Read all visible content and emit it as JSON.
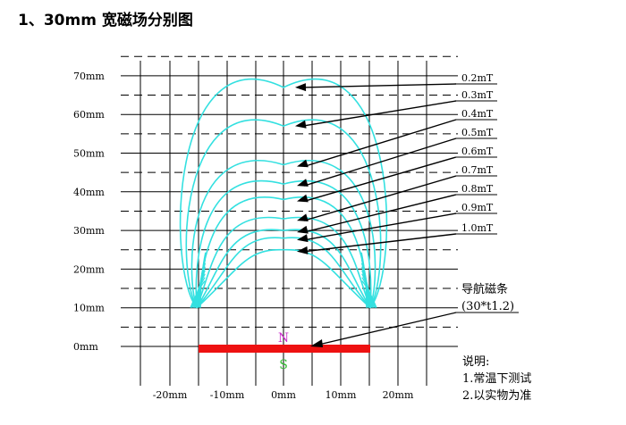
{
  "title": "1、30mm 宽磁场分别图",
  "y_axis_labels": [
    "70mm",
    "60mm",
    "50mm",
    "40mm",
    "30mm",
    "20mm",
    "10mm",
    "0mm"
  ],
  "x_axis_labels": [
    "-20mm",
    "-10mm",
    "0mm",
    "10mm",
    "20mm"
  ],
  "field_lines": [
    {
      "label": "0.2mT",
      "height_mm": 67
    },
    {
      "label": "0.3mT",
      "height_mm": 57
    },
    {
      "label": "0.4mT",
      "height_mm": 47
    },
    {
      "label": "0.5mT",
      "height_mm": 42
    },
    {
      "label": "0.6mT",
      "height_mm": 38
    },
    {
      "label": "0.7mT",
      "height_mm": 33
    },
    {
      "label": "0.8mT",
      "height_mm": 30
    },
    {
      "label": "0.9mT",
      "height_mm": 28
    },
    {
      "label": "1.0mT",
      "height_mm": 25
    }
  ],
  "magnet": {
    "north": "N",
    "south": "S",
    "label_line1": "导航磁条",
    "label_line2": "(30*t1.2)"
  },
  "notes": {
    "heading": "说明:",
    "item1": "1.常温下测试",
    "item2": "2.以实物为准"
  },
  "colors": {
    "field": "#33e0e0",
    "magnet": "#ee1111",
    "north": "#cc33cc",
    "south": "#33bb33"
  }
}
